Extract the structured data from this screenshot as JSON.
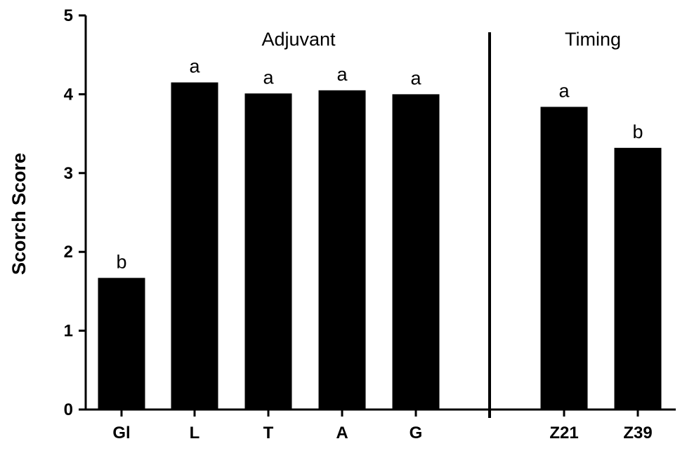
{
  "chart_data": {
    "type": "bar",
    "ylabel": "Scorch Score",
    "xlabel": "",
    "ylim": [
      0,
      5
    ],
    "yticks": [
      "0",
      "1",
      "2",
      "3",
      "4",
      "5"
    ],
    "groups": [
      {
        "label": "Adjuvant",
        "categories": [
          "Gl",
          "L",
          "T",
          "A",
          "G"
        ]
      },
      {
        "label": "Timing",
        "categories": [
          "Z21",
          "Z39"
        ]
      }
    ],
    "categories": [
      "Gl",
      "L",
      "T",
      "A",
      "G",
      "Z21",
      "Z39"
    ],
    "values": [
      1.67,
      4.15,
      4.01,
      4.05,
      4.0,
      3.84,
      3.32
    ],
    "significance_letters": [
      "b",
      "a",
      "a",
      "a",
      "a",
      "a",
      "b"
    ],
    "grid": false,
    "legend": "none",
    "bar_color": "#000000"
  }
}
